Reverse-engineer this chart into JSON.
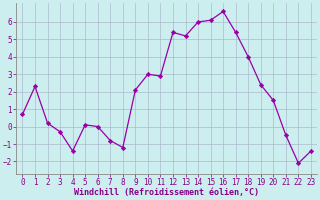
{
  "x": [
    0,
    1,
    2,
    3,
    4,
    5,
    6,
    7,
    8,
    9,
    10,
    11,
    12,
    13,
    14,
    15,
    16,
    17,
    18,
    19,
    20,
    21,
    22,
    23
  ],
  "y": [
    0.7,
    2.3,
    0.2,
    -0.3,
    -1.4,
    0.1,
    0.0,
    -0.8,
    -1.2,
    2.1,
    3.0,
    2.9,
    5.4,
    5.2,
    6.0,
    6.1,
    6.6,
    5.4,
    4.0,
    2.4,
    1.5,
    -0.5,
    -2.1,
    -1.4
  ],
  "line_color": "#9900aa",
  "marker": "D",
  "marker_size": 2.2,
  "bg_color": "#cceeee",
  "grid_color": "#aabbcc",
  "xlabel": "Windchill (Refroidissement éolien,°C)",
  "ylabel": "",
  "xlim": [
    -0.5,
    23.5
  ],
  "ylim": [
    -2.7,
    7.1
  ],
  "yticks": [
    -2,
    -1,
    0,
    1,
    2,
    3,
    4,
    5,
    6
  ],
  "xticks": [
    0,
    1,
    2,
    3,
    4,
    5,
    6,
    7,
    8,
    9,
    10,
    11,
    12,
    13,
    14,
    15,
    16,
    17,
    18,
    19,
    20,
    21,
    22,
    23
  ],
  "tick_fontsize": 5.5,
  "xlabel_fontsize": 6.0,
  "axis_color": "#880088",
  "spine_color": "#888888"
}
